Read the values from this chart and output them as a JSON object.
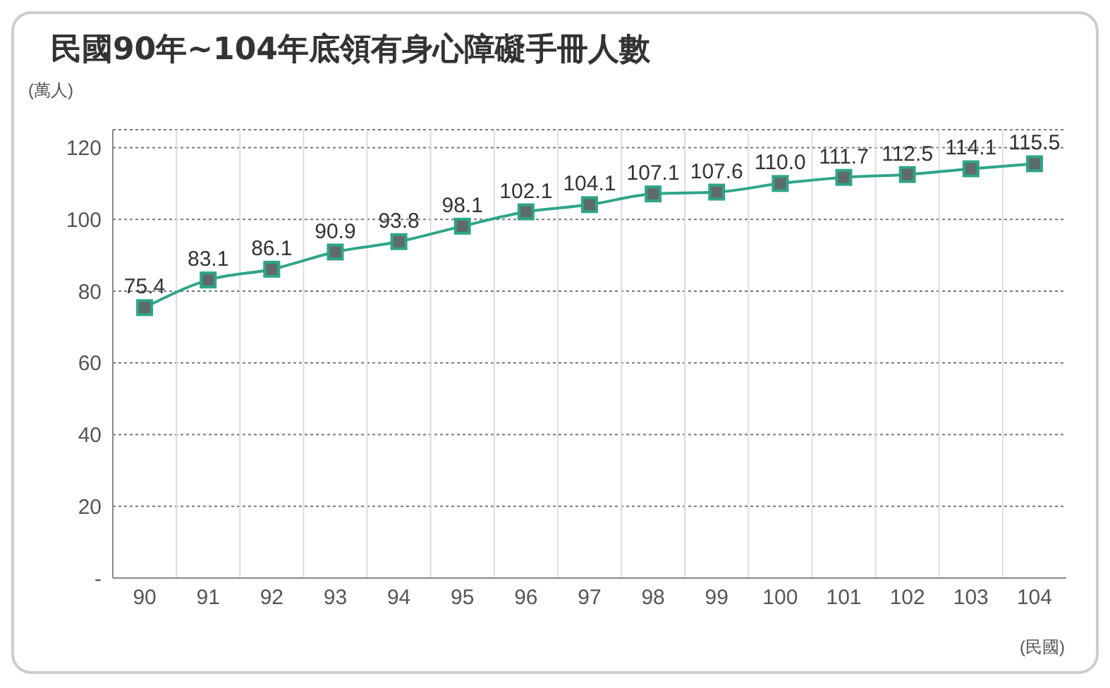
{
  "chart_data": {
    "type": "line",
    "title": "民國90年~104年底領有身心障礙手冊人數",
    "ylabel": "(萬人)",
    "xlabel": "(民國)",
    "categories": [
      "90",
      "91",
      "92",
      "93",
      "94",
      "95",
      "96",
      "97",
      "98",
      "99",
      "100",
      "101",
      "102",
      "103",
      "104"
    ],
    "values": [
      75.4,
      83.1,
      86.1,
      90.9,
      93.8,
      98.1,
      102.1,
      104.1,
      107.1,
      107.6,
      110.0,
      111.7,
      112.5,
      114.1,
      115.5
    ],
    "value_labels": [
      "75.4",
      "83.1",
      "86.1",
      "90.9",
      "93.8",
      "98.1",
      "102.1",
      "104.1",
      "107.1",
      "107.6",
      "110.0",
      "111.7",
      "112.5",
      "114.1",
      "115.5"
    ],
    "color": "#2fa58a",
    "marker": "square",
    "line_style": "solid",
    "grid": true,
    "ylim": [
      0,
      125
    ],
    "yticks": [
      {
        "value": 0,
        "label": "-"
      },
      20,
      40,
      60,
      80,
      100,
      120
    ]
  }
}
